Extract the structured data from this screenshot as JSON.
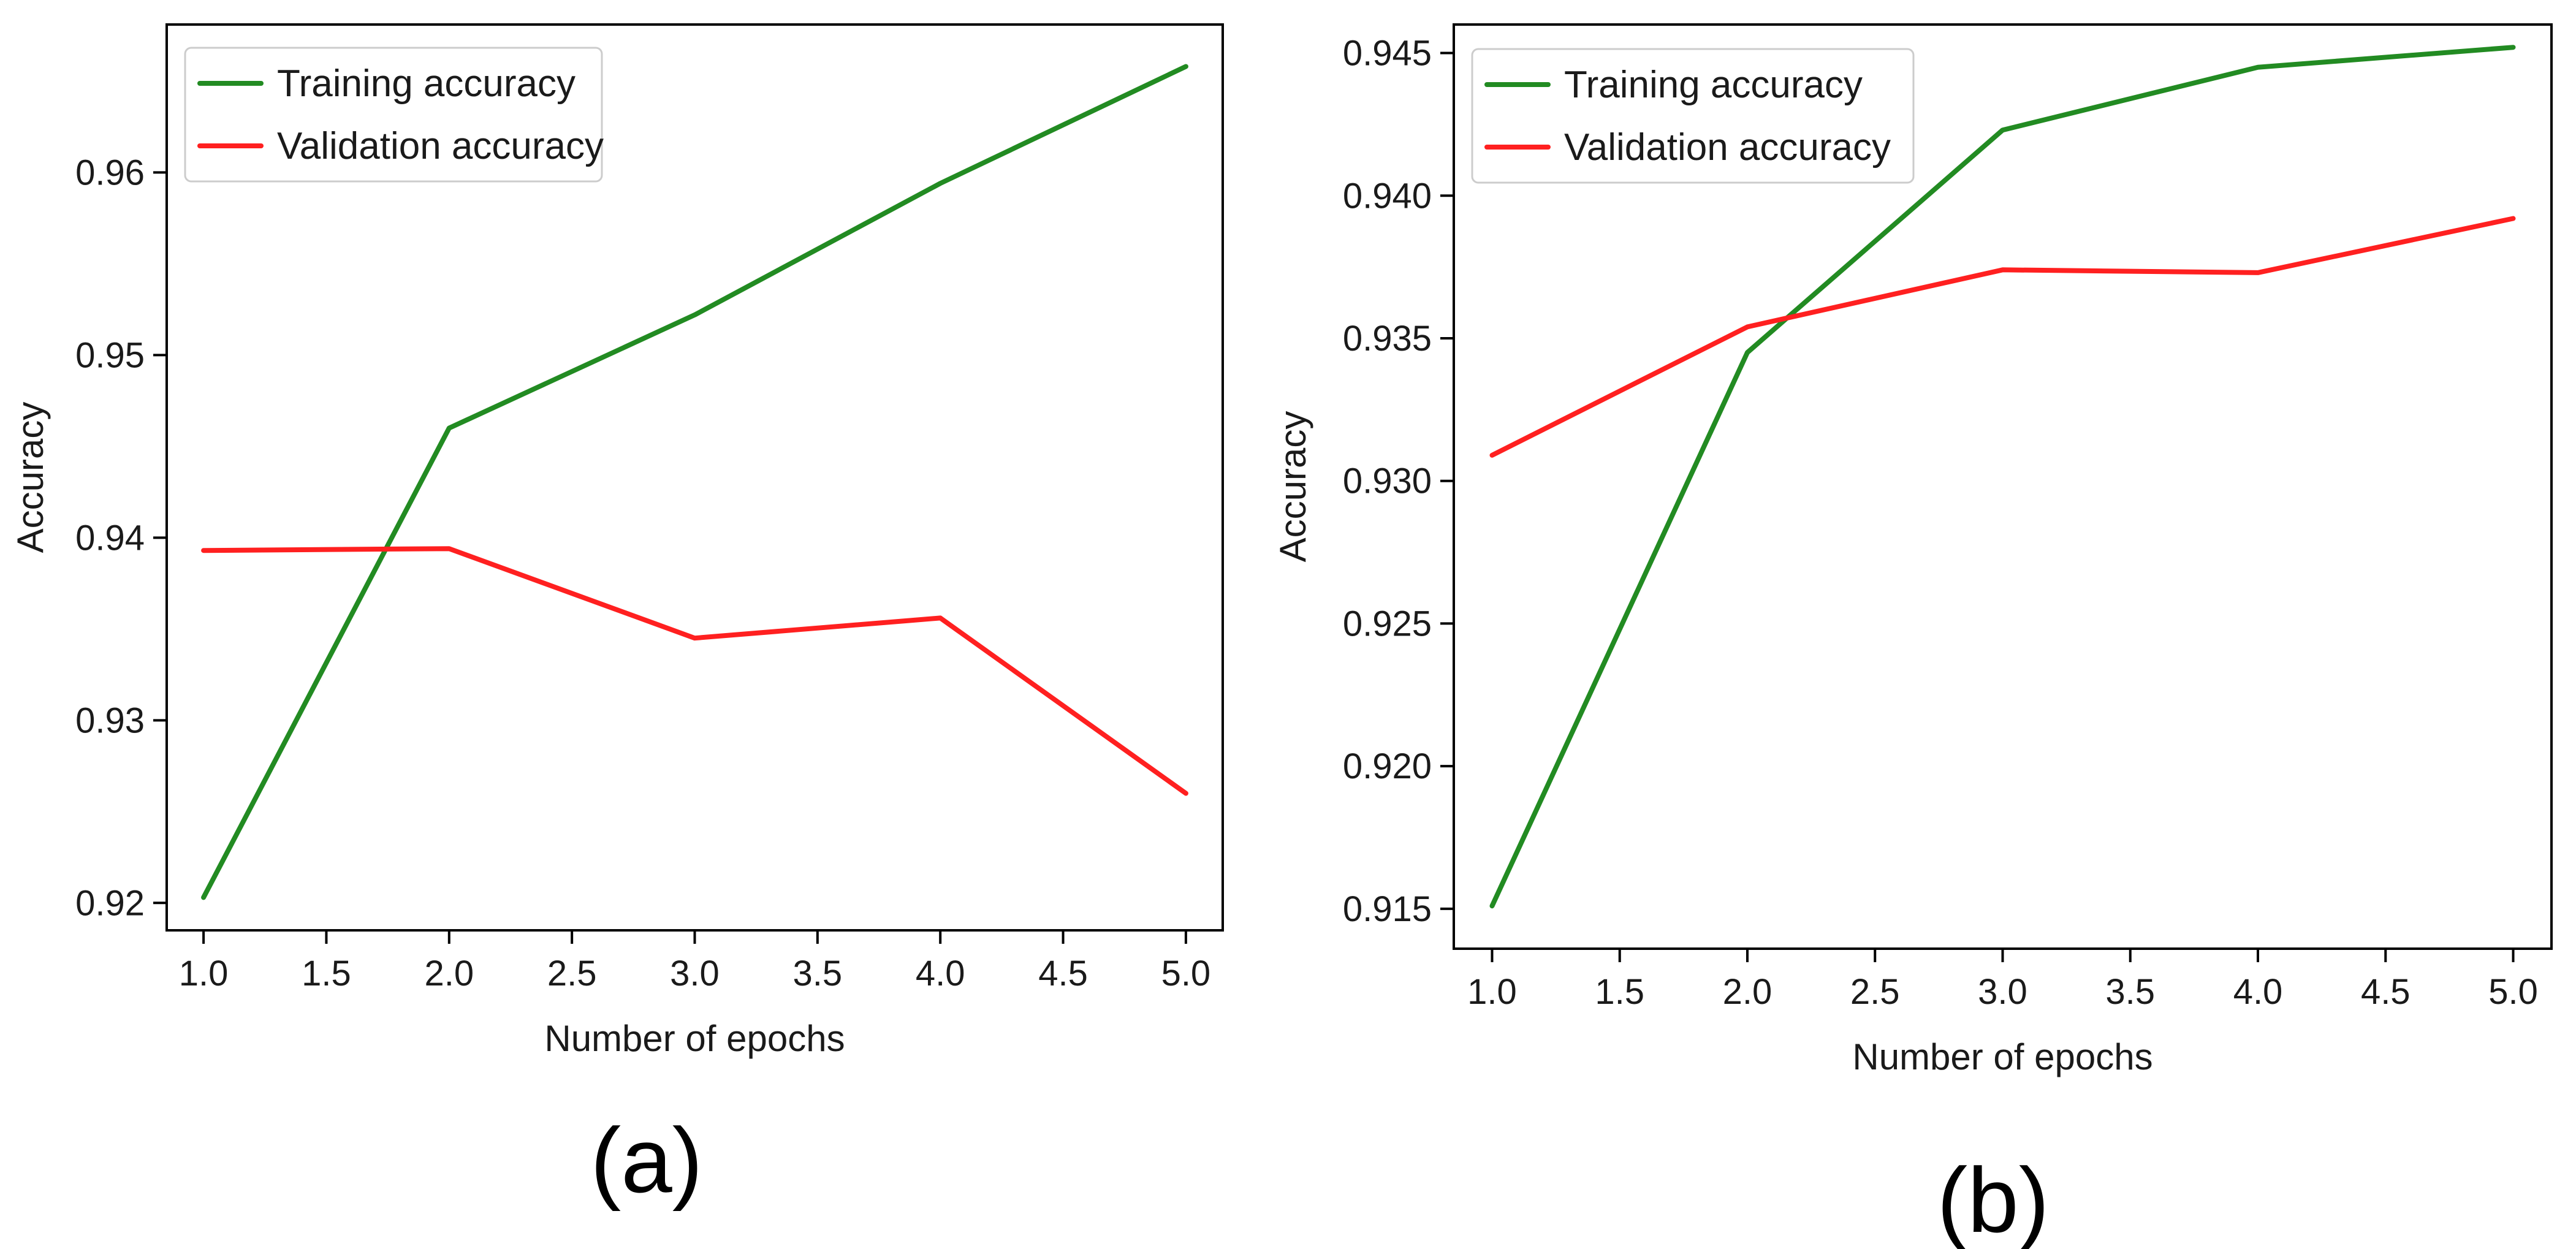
{
  "chart_data": [
    {
      "type": "line",
      "panel_label": "(a)",
      "xlabel": "Number of epochs",
      "ylabel": "Accuracy",
      "x": [
        1.0,
        2.0,
        3.0,
        4.0,
        5.0
      ],
      "xlim": [
        0.85,
        5.15
      ],
      "ylim": [
        0.9185,
        0.9681
      ],
      "xticks": [
        1.0,
        1.5,
        2.0,
        2.5,
        3.0,
        3.5,
        4.0,
        4.5,
        5.0
      ],
      "xtick_labels": [
        "1.0",
        "1.5",
        "2.0",
        "2.5",
        "3.0",
        "3.5",
        "4.0",
        "4.5",
        "5.0"
      ],
      "yticks": [
        0.92,
        0.93,
        0.94,
        0.95,
        0.96
      ],
      "ytick_labels": [
        "0.92",
        "0.93",
        "0.94",
        "0.95",
        "0.96"
      ],
      "legend_position": "top-left",
      "grid": false,
      "series": [
        {
          "name": "Training accuracy",
          "color": "#228B22",
          "values": [
            0.9203,
            0.946,
            0.9522,
            0.9594,
            0.9658
          ]
        },
        {
          "name": "Validation accuracy",
          "color": "#FF2020",
          "values": [
            0.9393,
            0.9394,
            0.9345,
            0.9356,
            0.926
          ]
        }
      ]
    },
    {
      "type": "line",
      "panel_label": "(b)",
      "xlabel": "Number of epochs",
      "ylabel": "Accuracy",
      "x": [
        1.0,
        2.0,
        3.0,
        4.0,
        5.0
      ],
      "xlim": [
        0.85,
        5.15
      ],
      "ylim": [
        0.9136,
        0.946
      ],
      "xticks": [
        1.0,
        1.5,
        2.0,
        2.5,
        3.0,
        3.5,
        4.0,
        4.5,
        5.0
      ],
      "xtick_labels": [
        "1.0",
        "1.5",
        "2.0",
        "2.5",
        "3.0",
        "3.5",
        "4.0",
        "4.5",
        "5.0"
      ],
      "yticks": [
        0.915,
        0.92,
        0.925,
        0.93,
        0.935,
        0.94,
        0.945
      ],
      "ytick_labels": [
        "0.915",
        "0.920",
        "0.925",
        "0.930",
        "0.935",
        "0.940",
        "0.945"
      ],
      "legend_position": "top-left",
      "grid": false,
      "series": [
        {
          "name": "Training accuracy",
          "color": "#228B22",
          "values": [
            0.9151,
            0.9345,
            0.9423,
            0.9445,
            0.9452
          ]
        },
        {
          "name": "Validation accuracy",
          "color": "#FF2020",
          "values": [
            0.9309,
            0.9354,
            0.9374,
            0.9373,
            0.9392
          ]
        }
      ]
    }
  ]
}
